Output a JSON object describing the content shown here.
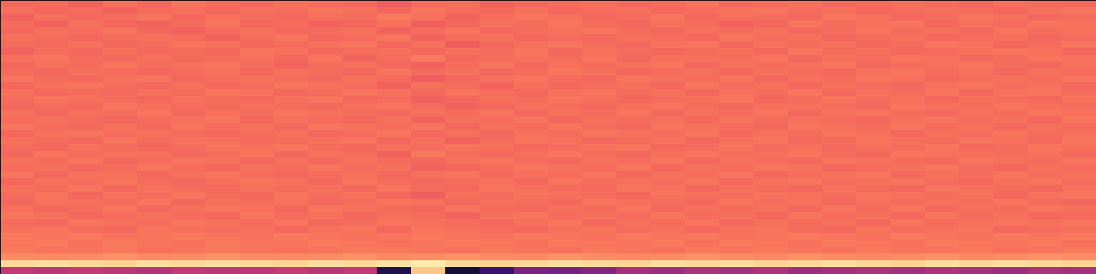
{
  "chart_data": {
    "type": "heatmap",
    "tick_labels": false,
    "color": "magma",
    "color_range": [
      0,
      100
    ],
    "cells": [
      [
        68,
        69,
        67,
        70,
        68,
        71,
        69,
        68,
        70,
        69,
        68,
        66,
        69,
        70,
        67,
        68,
        69,
        70,
        68,
        69,
        71,
        68,
        69,
        70,
        68,
        69,
        70,
        69,
        68,
        70,
        69,
        68
      ],
      [
        70,
        68,
        69,
        67,
        69,
        70,
        68,
        70,
        69,
        71,
        70,
        68,
        71,
        69,
        68,
        70,
        68,
        69,
        70,
        68,
        69,
        70,
        71,
        69,
        70,
        68,
        69,
        70,
        69,
        68,
        70,
        71
      ],
      [
        67,
        70,
        68,
        69,
        71,
        68,
        70,
        69,
        68,
        70,
        69,
        72,
        70,
        67,
        69,
        71,
        70,
        68,
        69,
        71,
        68,
        70,
        69,
        68,
        71,
        70,
        68,
        69,
        71,
        70,
        68,
        69
      ],
      [
        69,
        67,
        70,
        68,
        67,
        69,
        71,
        68,
        69,
        67,
        68,
        70,
        66,
        68,
        70,
        69,
        71,
        69,
        68,
        70,
        69,
        67,
        68,
        71,
        69,
        70,
        71,
        68,
        70,
        69,
        71,
        70
      ],
      [
        68,
        70,
        69,
        71,
        68,
        67,
        69,
        70,
        68,
        69,
        70,
        67,
        69,
        71,
        68,
        69,
        70,
        71,
        69,
        68,
        70,
        69,
        70,
        68,
        69,
        71,
        69,
        70,
        68,
        71,
        69,
        70
      ],
      [
        70,
        69,
        68,
        69,
        70,
        69,
        67,
        69,
        71,
        68,
        69,
        71,
        67,
        69,
        70,
        68,
        69,
        68,
        70,
        69,
        68,
        71,
        69,
        70,
        68,
        69,
        70,
        68,
        69,
        70,
        68,
        69
      ],
      [
        69,
        68,
        70,
        68,
        69,
        71,
        70,
        68,
        69,
        70,
        71,
        68,
        70,
        66,
        68,
        70,
        71,
        69,
        68,
        70,
        71,
        68,
        70,
        69,
        70,
        68,
        69,
        71,
        70,
        68,
        69,
        71
      ],
      [
        67,
        69,
        68,
        70,
        68,
        69,
        68,
        71,
        70,
        68,
        69,
        70,
        68,
        70,
        69,
        71,
        68,
        70,
        69,
        68,
        69,
        70,
        68,
        71,
        69,
        70,
        68,
        69,
        70,
        71,
        70,
        68
      ],
      [
        70,
        71,
        69,
        68,
        70,
        68,
        69,
        70,
        68,
        71,
        67,
        69,
        72,
        68,
        69,
        70,
        69,
        71,
        68,
        70,
        70,
        69,
        71,
        68,
        70,
        69,
        71,
        70,
        68,
        69,
        71,
        70
      ],
      [
        68,
        70,
        69,
        71,
        69,
        70,
        71,
        69,
        67,
        69,
        70,
        68,
        67,
        69,
        71,
        68,
        70,
        69,
        70,
        71,
        68,
        70,
        69,
        70,
        71,
        68,
        69,
        70,
        71,
        69,
        68,
        70
      ],
      [
        69,
        68,
        70,
        69,
        68,
        69,
        70,
        68,
        70,
        69,
        68,
        71,
        69,
        70,
        68,
        69,
        71,
        70,
        68,
        69,
        70,
        68,
        70,
        69,
        68,
        70,
        71,
        69,
        70,
        68,
        70,
        69
      ],
      [
        71,
        69,
        68,
        70,
        71,
        68,
        69,
        70,
        69,
        68,
        70,
        69,
        66,
        68,
        70,
        71,
        69,
        68,
        71,
        70,
        69,
        71,
        68,
        70,
        69,
        71,
        70,
        68,
        69,
        70,
        69,
        71
      ],
      [
        68,
        70,
        71,
        69,
        68,
        70,
        68,
        69,
        71,
        70,
        69,
        67,
        70,
        69,
        67,
        70,
        68,
        69,
        70,
        68,
        71,
        69,
        70,
        68,
        70,
        69,
        68,
        70,
        71,
        69,
        70,
        68
      ],
      [
        70,
        68,
        69,
        68,
        70,
        69,
        71,
        70,
        68,
        69,
        71,
        70,
        68,
        71,
        69,
        68,
        70,
        71,
        69,
        70,
        68,
        70,
        69,
        71,
        68,
        70,
        69,
        71,
        68,
        70,
        71,
        69
      ],
      [
        69,
        71,
        70,
        69,
        68,
        70,
        69,
        68,
        70,
        71,
        68,
        69,
        67,
        68,
        70,
        69,
        71,
        70,
        68,
        69,
        70,
        71,
        68,
        69,
        71,
        69,
        70,
        68,
        70,
        69,
        68,
        70
      ],
      [
        68,
        69,
        68,
        71,
        70,
        69,
        68,
        70,
        69,
        68,
        70,
        71,
        69,
        67,
        68,
        70,
        69,
        68,
        70,
        71,
        69,
        68,
        70,
        70,
        69,
        68,
        71,
        70,
        69,
        71,
        70,
        69
      ],
      [
        70,
        68,
        70,
        69,
        71,
        68,
        70,
        69,
        71,
        70,
        69,
        68,
        70,
        69,
        71,
        68,
        70,
        69,
        71,
        68,
        70,
        69,
        71,
        68,
        70,
        71,
        69,
        68,
        70,
        69,
        71,
        70
      ],
      [
        69,
        70,
        69,
        68,
        69,
        70,
        71,
        68,
        70,
        69,
        68,
        70,
        67,
        70,
        69,
        71,
        68,
        70,
        69,
        70,
        68,
        71,
        69,
        70,
        69,
        68,
        70,
        71,
        69,
        70,
        68,
        71
      ],
      [
        71,
        69,
        68,
        70,
        68,
        71,
        69,
        70,
        68,
        71,
        70,
        69,
        71,
        68,
        70,
        69,
        71,
        69,
        68,
        71,
        70,
        69,
        68,
        71,
        70,
        69,
        71,
        69,
        70,
        68,
        70,
        69
      ],
      [
        68,
        70,
        71,
        69,
        70,
        69,
        68,
        69,
        70,
        68,
        69,
        71,
        68,
        70,
        68,
        70,
        69,
        71,
        70,
        69,
        71,
        68,
        70,
        69,
        71,
        70,
        68,
        70,
        69,
        71,
        69,
        70
      ],
      [
        70,
        69,
        68,
        71,
        69,
        70,
        70,
        68,
        69,
        70,
        71,
        68,
        70,
        67,
        69,
        71,
        70,
        68,
        69,
        70,
        68,
        70,
        71,
        68,
        69,
        71,
        70,
        69,
        71,
        70,
        68,
        71
      ],
      [
        69,
        68,
        70,
        69,
        68,
        69,
        71,
        70,
        71,
        69,
        68,
        70,
        69,
        71,
        70,
        68,
        69,
        70,
        71,
        68,
        69,
        71,
        69,
        70,
        68,
        70,
        69,
        71,
        68,
        69,
        71,
        70
      ],
      [
        68,
        71,
        69,
        70,
        70,
        68,
        69,
        71,
        68,
        70,
        69,
        67,
        72,
        69,
        68,
        70,
        71,
        69,
        68,
        70,
        71,
        69,
        70,
        71,
        69,
        68,
        71,
        70,
        70,
        69,
        70,
        68
      ],
      [
        70,
        69,
        71,
        68,
        69,
        71,
        70,
        68,
        70,
        68,
        70,
        69,
        68,
        70,
        71,
        69,
        68,
        70,
        69,
        71,
        68,
        70,
        69,
        68,
        71,
        70,
        69,
        68,
        71,
        70,
        69,
        71
      ],
      [
        69,
        70,
        68,
        69,
        71,
        69,
        68,
        70,
        69,
        71,
        69,
        70,
        67,
        68,
        69,
        71,
        70,
        69,
        71,
        68,
        70,
        69,
        71,
        70,
        68,
        69,
        70,
        71,
        69,
        68,
        70,
        69
      ],
      [
        71,
        68,
        70,
        70,
        68,
        70,
        71,
        69,
        68,
        69,
        70,
        68,
        70,
        71,
        68,
        70,
        69,
        71,
        68,
        70,
        69,
        71,
        68,
        69,
        70,
        71,
        68,
        70,
        69,
        71,
        69,
        70
      ],
      [
        68,
        70,
        69,
        71,
        69,
        68,
        70,
        71,
        70,
        68,
        71,
        69,
        68,
        69,
        70,
        68,
        71,
        69,
        70,
        69,
        71,
        68,
        70,
        71,
        69,
        70,
        71,
        69,
        68,
        70,
        71,
        69
      ],
      [
        70,
        69,
        71,
        68,
        70,
        69,
        68,
        70,
        69,
        70,
        68,
        71,
        69,
        68,
        71,
        70,
        69,
        68,
        71,
        70,
        68,
        70,
        69,
        68,
        70,
        69,
        68,
        71,
        70,
        69,
        68,
        70
      ],
      [
        69,
        71,
        68,
        70,
        69,
        71,
        69,
        68,
        71,
        69,
        70,
        68,
        66,
        70,
        69,
        71,
        70,
        69,
        68,
        71,
        70,
        69,
        71,
        70,
        69,
        71,
        70,
        69,
        71,
        68,
        70,
        71
      ],
      [
        68,
        70,
        70,
        69,
        71,
        68,
        70,
        69,
        70,
        68,
        69,
        71,
        70,
        68,
        70,
        69,
        68,
        71,
        70,
        69,
        68,
        71,
        69,
        70,
        68,
        70,
        69,
        70,
        69,
        71,
        69,
        68
      ],
      [
        70,
        68,
        69,
        71,
        68,
        70,
        71,
        70,
        68,
        71,
        70,
        69,
        68,
        71,
        69,
        68,
        70,
        69,
        71,
        68,
        70,
        69,
        70,
        68,
        71,
        69,
        71,
        68,
        70,
        69,
        71,
        70
      ],
      [
        71,
        70,
        68,
        69,
        70,
        69,
        68,
        71,
        69,
        70,
        68,
        70,
        69,
        67,
        70,
        71,
        69,
        70,
        69,
        71,
        69,
        70,
        68,
        71,
        69,
        70,
        68,
        71,
        69,
        70,
        68,
        69
      ],
      [
        69,
        68,
        71,
        70,
        69,
        71,
        70,
        69,
        71,
        68,
        69,
        71,
        70,
        69,
        68,
        70,
        71,
        68,
        70,
        69,
        71,
        68,
        70,
        69,
        70,
        68,
        71,
        69,
        70,
        71,
        70,
        71
      ],
      [
        70,
        71,
        69,
        68,
        71,
        70,
        69,
        70,
        68,
        70,
        71,
        68,
        71,
        70,
        69,
        68,
        70,
        71,
        69,
        70,
        68,
        70,
        71,
        69,
        68,
        71,
        69,
        70,
        71,
        68,
        69,
        70
      ],
      [
        72,
        71,
        72,
        70,
        71,
        72,
        71,
        70,
        72,
        71,
        70,
        71,
        72,
        71,
        70,
        72,
        71,
        70,
        72,
        71,
        72,
        70,
        71,
        72,
        71,
        70,
        72,
        71,
        70,
        72,
        71,
        72
      ],
      [
        71,
        72,
        70,
        72,
        71,
        70,
        72,
        71,
        71,
        72,
        71,
        70,
        71,
        72,
        71,
        70,
        72,
        71,
        71,
        72,
        70,
        72,
        71,
        70,
        72,
        71,
        70,
        72,
        71,
        71,
        72,
        70
      ],
      [
        72,
        71,
        71,
        72,
        70,
        71,
        72,
        71,
        70,
        71,
        72,
        72,
        71,
        70,
        72,
        71,
        70,
        72,
        71,
        70,
        72,
        71,
        72,
        71,
        70,
        72,
        71,
        71,
        72,
        70,
        71,
        72
      ],
      [
        76,
        75,
        76,
        77,
        75,
        76,
        77,
        76,
        75,
        76,
        77,
        75,
        76,
        77,
        76,
        75,
        77,
        76,
        75,
        76,
        77,
        76,
        75,
        77,
        76,
        75,
        76,
        77,
        75,
        76,
        77,
        76
      ],
      [
        92,
        93,
        92,
        91,
        93,
        92,
        93,
        92,
        91,
        93,
        92,
        94,
        96,
        92,
        91,
        92,
        93,
        92,
        91,
        93,
        92,
        93,
        91,
        92,
        93,
        92,
        91,
        93,
        92,
        93,
        92,
        91
      ],
      [
        52,
        50,
        53,
        51,
        49,
        52,
        50,
        51,
        53,
        50,
        52,
        14,
        88,
        10,
        20,
        35,
        34,
        38,
        46,
        44,
        47,
        45,
        48,
        44,
        46,
        47,
        45,
        48,
        46,
        44,
        47,
        46
      ]
    ]
  }
}
